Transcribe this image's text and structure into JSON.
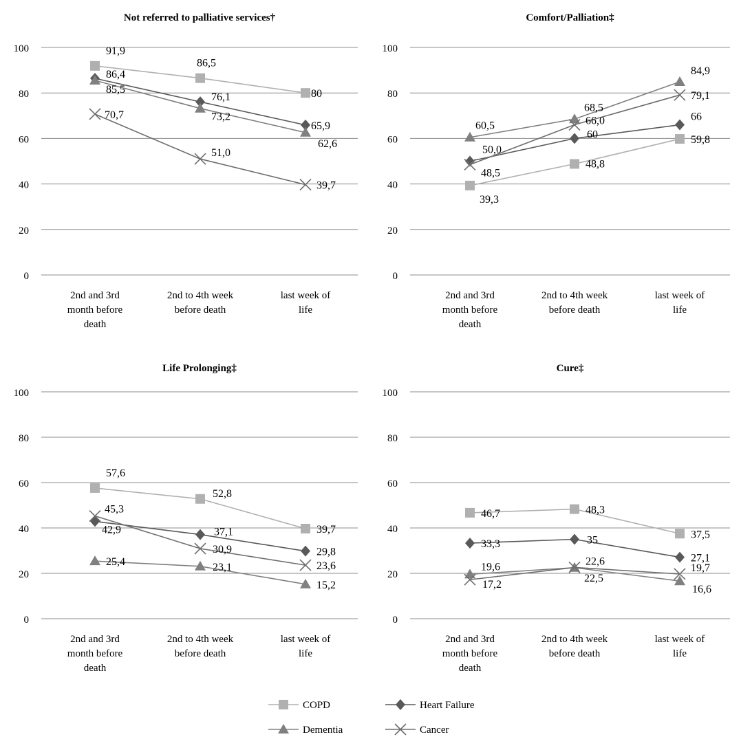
{
  "chart_data": [
    {
      "type": "line",
      "title": "Not referred to palliative services†",
      "categories": [
        "2nd and 3rd month before death",
        "2nd to 4th week before death",
        "last week of life"
      ],
      "ylim": [
        0,
        100
      ],
      "yticks": [
        0,
        20,
        40,
        60,
        80,
        100
      ],
      "grid": true,
      "series": [
        {
          "name": "COPD",
          "values": [
            91.9,
            86.5,
            80
          ],
          "labels": [
            "91,9",
            "86,5",
            "80"
          ]
        },
        {
          "name": "Heart Failure",
          "values": [
            86.4,
            76.1,
            65.9
          ],
          "labels": [
            "86,4",
            "76,1",
            "65,9"
          ]
        },
        {
          "name": "Dementia",
          "values": [
            85.5,
            73.2,
            62.6
          ],
          "labels": [
            "85,5",
            "73,2",
            "62,6"
          ]
        },
        {
          "name": "Cancer",
          "values": [
            70.7,
            51.0,
            39.7
          ],
          "labels": [
            "70,7",
            "51,0",
            "39,7"
          ]
        }
      ]
    },
    {
      "type": "line",
      "title": "Comfort/Palliation‡",
      "categories": [
        "2nd and 3rd month before death",
        "2nd to 4th week before death",
        "last week of life"
      ],
      "ylim": [
        0,
        100
      ],
      "yticks": [
        0,
        20,
        40,
        60,
        80,
        100
      ],
      "grid": true,
      "series": [
        {
          "name": "COPD",
          "values": [
            39.3,
            48.8,
            59.8
          ],
          "labels": [
            "39,3",
            "48,8",
            "59,8"
          ]
        },
        {
          "name": "Heart Failure",
          "values": [
            50.0,
            60,
            66
          ],
          "labels": [
            "50,0",
            "60",
            "66"
          ]
        },
        {
          "name": "Dementia",
          "values": [
            60.5,
            68.5,
            84.9
          ],
          "labels": [
            "60,5",
            "68,5",
            "84,9"
          ]
        },
        {
          "name": "Cancer",
          "values": [
            48.5,
            66.0,
            79.1
          ],
          "labels": [
            "48,5",
            "66,0",
            "79,1"
          ]
        }
      ]
    },
    {
      "type": "line",
      "title": "Life Prolonging‡",
      "categories": [
        "2nd and 3rd month before death",
        "2nd to 4th week before death",
        "last week of life"
      ],
      "ylim": [
        0,
        100
      ],
      "yticks": [
        0,
        20,
        40,
        60,
        80,
        100
      ],
      "grid": true,
      "series": [
        {
          "name": "COPD",
          "values": [
            57.6,
            52.8,
            39.7
          ],
          "labels": [
            "57,6",
            "52,8",
            "39,7"
          ]
        },
        {
          "name": "Heart Failure",
          "values": [
            42.9,
            37.1,
            29.8
          ],
          "labels": [
            "42,9",
            "37,1",
            "29,8"
          ]
        },
        {
          "name": "Dementia",
          "values": [
            25.4,
            23.1,
            15.2
          ],
          "labels": [
            "25,4",
            "23,1",
            "15,2"
          ]
        },
        {
          "name": "Cancer",
          "values": [
            45.3,
            30.9,
            23.6
          ],
          "labels": [
            "45,3",
            "30,9",
            "23,6"
          ]
        }
      ]
    },
    {
      "type": "line",
      "title": "Cure‡",
      "categories": [
        "2nd and 3rd month before death",
        "2nd to 4th week before death",
        "last week of life"
      ],
      "ylim": [
        0,
        100
      ],
      "yticks": [
        0,
        20,
        40,
        60,
        80,
        100
      ],
      "grid": true,
      "series": [
        {
          "name": "COPD",
          "values": [
            46.7,
            48.3,
            37.5
          ],
          "labels": [
            "46,7",
            "48,3",
            "37,5"
          ]
        },
        {
          "name": "Heart Failure",
          "values": [
            33.3,
            35,
            27.1
          ],
          "labels": [
            "33,3",
            "35",
            "27,1"
          ]
        },
        {
          "name": "Dementia",
          "values": [
            19.6,
            22.5,
            16.6
          ],
          "labels": [
            "19,6",
            "22,5",
            "16,6"
          ]
        },
        {
          "name": "Cancer",
          "values": [
            17.2,
            22.6,
            19.7
          ],
          "labels": [
            "17,2",
            "22,6",
            "19,7"
          ]
        }
      ]
    }
  ],
  "legend": {
    "placement": "bottom-center",
    "items": [
      {
        "label": "COPD",
        "color": "#b0b0b0",
        "marker": "square"
      },
      {
        "label": "Heart Failure",
        "color": "#595959",
        "marker": "diamond"
      },
      {
        "label": "Dementia",
        "color": "#808080",
        "marker": "triangle"
      },
      {
        "label": "Cancer",
        "color": "#6e6e6e",
        "marker": "cross"
      }
    ]
  }
}
